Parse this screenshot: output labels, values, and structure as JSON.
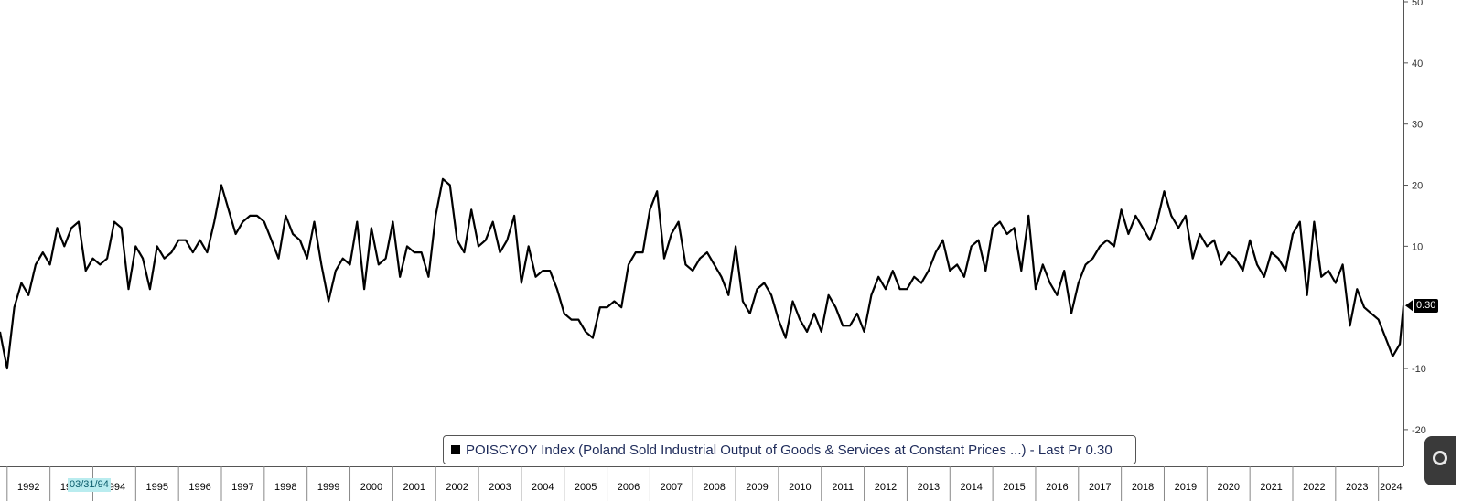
{
  "chart_data": {
    "type": "line",
    "title": "",
    "xlabel": "",
    "ylabel": "",
    "x_range": [
      "1991-11",
      "2024-08"
    ],
    "ylim": [
      -26,
      50
    ],
    "y_ticks": [
      50,
      40,
      30,
      20,
      10,
      -10,
      -20
    ],
    "y_tick_labels": [
      "50",
      "40",
      "30",
      "20",
      "10",
      "-10",
      "-20"
    ],
    "x_ticks": [
      "1992",
      "1993",
      "1994",
      "1995",
      "1996",
      "1997",
      "1998",
      "1999",
      "2000",
      "2001",
      "2002",
      "2003",
      "2004",
      "2005",
      "2006",
      "2007",
      "2008",
      "2009",
      "2010",
      "2011",
      "2012",
      "2013",
      "2014",
      "2015",
      "2016",
      "2017",
      "2018",
      "2019",
      "2020",
      "2021",
      "2022",
      "2023",
      "2024"
    ],
    "grid": false,
    "legend_position": "bottom-center",
    "series": [
      {
        "name": "POISCYOY Index (Poland Sold Industrial Output of Goods & Services at Constant Prices ...) - Last Pr 0.30",
        "color": "#000000",
        "points": [
          [
            "1991-11",
            -4
          ],
          [
            "1992-01",
            -10
          ],
          [
            "1992-03",
            0
          ],
          [
            "1992-05",
            4
          ],
          [
            "1992-07",
            2
          ],
          [
            "1992-09",
            7
          ],
          [
            "1992-11",
            9
          ],
          [
            "1993-01",
            7
          ],
          [
            "1993-03",
            13
          ],
          [
            "1993-05",
            10
          ],
          [
            "1993-07",
            13
          ],
          [
            "1993-09",
            14
          ],
          [
            "1993-11",
            6
          ],
          [
            "1994-01",
            8
          ],
          [
            "1994-03",
            7
          ],
          [
            "1994-05",
            8
          ],
          [
            "1994-07",
            14
          ],
          [
            "1994-09",
            13
          ],
          [
            "1994-11",
            3
          ],
          [
            "1995-01",
            10
          ],
          [
            "1995-03",
            8
          ],
          [
            "1995-05",
            3
          ],
          [
            "1995-07",
            10
          ],
          [
            "1995-09",
            8
          ],
          [
            "1995-11",
            9
          ],
          [
            "1996-01",
            11
          ],
          [
            "1996-03",
            11
          ],
          [
            "1996-05",
            9
          ],
          [
            "1996-07",
            11
          ],
          [
            "1996-09",
            9
          ],
          [
            "1996-11",
            14
          ],
          [
            "1997-01",
            20
          ],
          [
            "1997-03",
            16
          ],
          [
            "1997-05",
            12
          ],
          [
            "1997-07",
            14
          ],
          [
            "1997-09",
            15
          ],
          [
            "1997-11",
            15
          ],
          [
            "1998-01",
            14
          ],
          [
            "1998-03",
            11
          ],
          [
            "1998-05",
            8
          ],
          [
            "1998-07",
            15
          ],
          [
            "1998-09",
            12
          ],
          [
            "1998-11",
            11
          ],
          [
            "1999-01",
            8
          ],
          [
            "1999-03",
            14
          ],
          [
            "1999-05",
            7
          ],
          [
            "1999-07",
            1
          ],
          [
            "1999-09",
            6
          ],
          [
            "1999-11",
            8
          ],
          [
            "2000-01",
            7
          ],
          [
            "2000-03",
            14
          ],
          [
            "2000-05",
            3
          ],
          [
            "2000-07",
            13
          ],
          [
            "2000-09",
            7
          ],
          [
            "2000-11",
            8
          ],
          [
            "2001-01",
            14
          ],
          [
            "2001-03",
            5
          ],
          [
            "2001-05",
            10
          ],
          [
            "2001-07",
            9
          ],
          [
            "2001-09",
            9
          ],
          [
            "2001-11",
            5
          ],
          [
            "2002-01",
            15
          ],
          [
            "2002-03",
            21
          ],
          [
            "2002-05",
            20
          ],
          [
            "2002-07",
            11
          ],
          [
            "2002-09",
            9
          ],
          [
            "2002-11",
            16
          ],
          [
            "2003-01",
            10
          ],
          [
            "2003-03",
            11
          ],
          [
            "2003-05",
            14
          ],
          [
            "2003-07",
            9
          ],
          [
            "2003-09",
            11
          ],
          [
            "2003-11",
            15
          ],
          [
            "2004-01",
            4
          ],
          [
            "2004-03",
            10
          ],
          [
            "2004-05",
            5
          ],
          [
            "2004-07",
            6
          ],
          [
            "2004-09",
            6
          ],
          [
            "2004-11",
            3
          ],
          [
            "2005-01",
            -1
          ],
          [
            "2005-03",
            -2
          ],
          [
            "2005-05",
            -2
          ],
          [
            "2005-07",
            -4
          ],
          [
            "2005-09",
            -5
          ],
          [
            "2005-11",
            0
          ],
          [
            "2006-01",
            0
          ],
          [
            "2006-03",
            1
          ],
          [
            "2006-05",
            0
          ],
          [
            "2006-07",
            7
          ],
          [
            "2006-09",
            9
          ],
          [
            "2006-11",
            9
          ],
          [
            "2007-01",
            16
          ],
          [
            "2007-03",
            19
          ],
          [
            "2007-05",
            8
          ],
          [
            "2007-07",
            12
          ],
          [
            "2007-09",
            14
          ],
          [
            "2007-11",
            7
          ],
          [
            "2008-01",
            6
          ],
          [
            "2008-03",
            8
          ],
          [
            "2008-05",
            9
          ],
          [
            "2008-07",
            7
          ],
          [
            "2008-09",
            5
          ],
          [
            "2008-11",
            2
          ],
          [
            "2009-01",
            10
          ],
          [
            "2009-03",
            1
          ],
          [
            "2009-05",
            -1
          ],
          [
            "2009-07",
            3
          ],
          [
            "2009-09",
            4
          ],
          [
            "2009-11",
            2
          ],
          [
            "2010-01",
            -2
          ],
          [
            "2010-03",
            -5
          ],
          [
            "2010-05",
            1
          ],
          [
            "2010-07",
            -2
          ],
          [
            "2010-09",
            -4
          ],
          [
            "2010-11",
            -1
          ],
          [
            "2011-01",
            -4
          ],
          [
            "2011-03",
            2
          ],
          [
            "2011-05",
            0
          ],
          [
            "2011-07",
            -3
          ],
          [
            "2011-09",
            -3
          ],
          [
            "2011-11",
            -1
          ],
          [
            "2012-01",
            -4
          ],
          [
            "2012-03",
            2
          ],
          [
            "2012-05",
            5
          ],
          [
            "2012-07",
            3
          ],
          [
            "2012-09",
            6
          ],
          [
            "2012-11",
            3
          ],
          [
            "2013-01",
            3
          ],
          [
            "2013-03",
            5
          ],
          [
            "2013-05",
            4
          ],
          [
            "2013-07",
            6
          ],
          [
            "2013-09",
            9
          ],
          [
            "2013-11",
            11
          ],
          [
            "2014-01",
            6
          ],
          [
            "2014-03",
            7
          ],
          [
            "2014-05",
            5
          ],
          [
            "2014-07",
            10
          ],
          [
            "2014-09",
            11
          ],
          [
            "2014-11",
            6
          ],
          [
            "2015-01",
            13
          ],
          [
            "2015-03",
            14
          ],
          [
            "2015-05",
            12
          ],
          [
            "2015-07",
            13
          ],
          [
            "2015-09",
            6
          ],
          [
            "2015-11",
            15
          ],
          [
            "2016-01",
            3
          ],
          [
            "2016-03",
            7
          ],
          [
            "2016-05",
            4
          ],
          [
            "2016-07",
            2
          ],
          [
            "2016-09",
            6
          ],
          [
            "2016-11",
            -1
          ],
          [
            "2017-01",
            4
          ],
          [
            "2017-03",
            7
          ],
          [
            "2017-05",
            8
          ],
          [
            "2017-07",
            10
          ],
          [
            "2017-09",
            11
          ],
          [
            "2017-11",
            10
          ],
          [
            "2018-01",
            16
          ],
          [
            "2018-03",
            12
          ],
          [
            "2018-05",
            15
          ],
          [
            "2018-07",
            13
          ],
          [
            "2018-09",
            11
          ],
          [
            "2018-11",
            14
          ],
          [
            "2019-01",
            19
          ],
          [
            "2019-03",
            15
          ],
          [
            "2019-05",
            13
          ],
          [
            "2019-07",
            15
          ],
          [
            "2019-09",
            8
          ],
          [
            "2019-11",
            12
          ],
          [
            "2020-01",
            10
          ],
          [
            "2020-03",
            11
          ],
          [
            "2020-05",
            7
          ],
          [
            "2020-07",
            9
          ],
          [
            "2020-09",
            8
          ],
          [
            "2020-11",
            6
          ],
          [
            "2021-01",
            11
          ],
          [
            "2021-03",
            7
          ],
          [
            "2021-05",
            5
          ],
          [
            "2021-07",
            9
          ],
          [
            "2021-09",
            8
          ],
          [
            "2021-11",
            6
          ],
          [
            "2022-01",
            12
          ],
          [
            "2022-03",
            14
          ],
          [
            "2022-05",
            2
          ],
          [
            "2022-07",
            14
          ],
          [
            "2022-09",
            5
          ],
          [
            "2022-11",
            6
          ],
          [
            "2023-01",
            4
          ],
          [
            "2023-03",
            7
          ],
          [
            "2023-05",
            -3
          ],
          [
            "2023-07",
            3
          ],
          [
            "2023-09",
            0
          ],
          [
            "2023-11",
            -1
          ],
          [
            "2024-01",
            -2
          ],
          [
            "2024-03",
            -5
          ],
          [
            "2024-05",
            -8
          ],
          [
            "2024-07",
            -6
          ],
          [
            "2024-08",
            0.3
          ]
        ]
      }
    ],
    "last_value_label": "0.30",
    "cursor_date_label": "03/31/94"
  }
}
